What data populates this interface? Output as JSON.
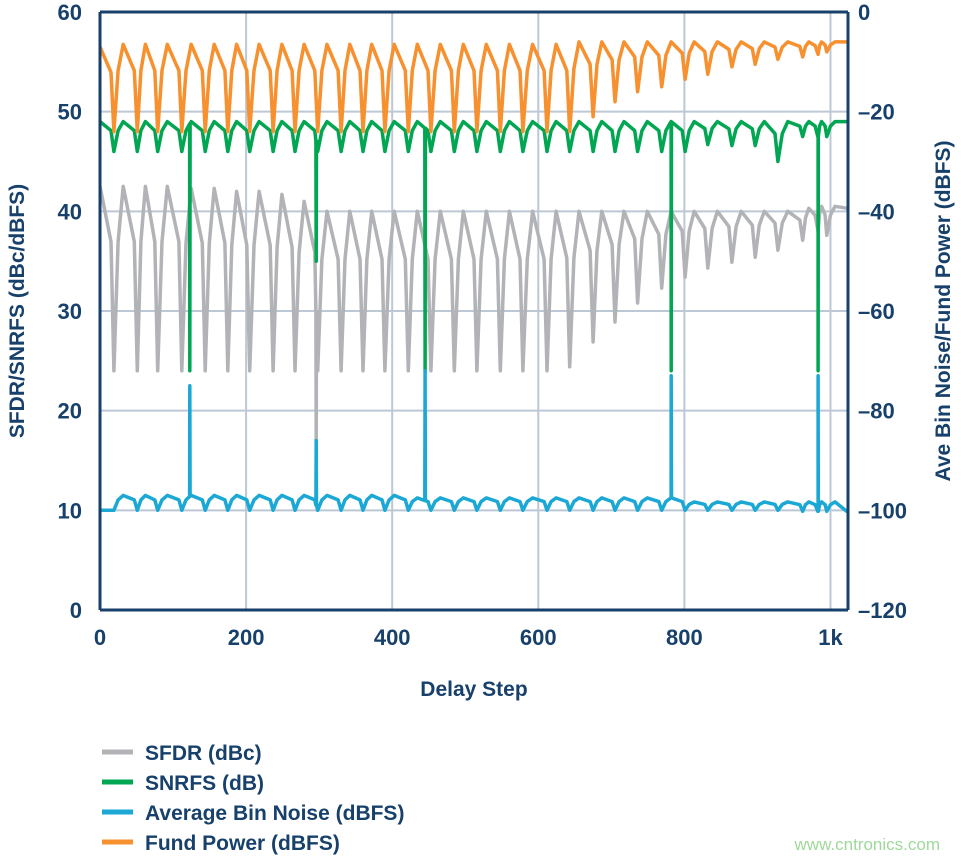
{
  "chart_data": {
    "type": "line",
    "xlabel": "Delay Step",
    "ylabel_left": "SFDR/SNRFS (dBc/dBFS)",
    "ylabel_right": "Ave Bin Noise/Fund Power (dBFS)",
    "xlim": [
      0,
      1024
    ],
    "ylim_left": [
      0,
      60
    ],
    "ylim_right": [
      -120,
      0
    ],
    "x_ticks": [
      0,
      200,
      400,
      600,
      800,
      1000
    ],
    "x_tick_labels": [
      "0",
      "200",
      "400",
      "600",
      "800",
      "1k"
    ],
    "y_left_ticks": [
      0,
      10,
      20,
      30,
      40,
      50,
      60
    ],
    "y_left_tick_labels": [
      "0",
      "10",
      "20",
      "30",
      "40",
      "50",
      "60"
    ],
    "y_right_ticks": [
      -120,
      -100,
      -80,
      -60,
      -40,
      -20,
      0
    ],
    "y_right_tick_labels": [
      "–120",
      "–100",
      "–80",
      "–60",
      "–40",
      "–20",
      "0"
    ],
    "grid": true,
    "legend_placement": "bottom-left",
    "cycle_dips_x": [
      19,
      51,
      79,
      112,
      144,
      175,
      205,
      237,
      267,
      298,
      330,
      360,
      390,
      422,
      453,
      485,
      516,
      548,
      579,
      612,
      643,
      675,
      705,
      736,
      769,
      801,
      832,
      865,
      897,
      928,
      962,
      983,
      995
    ],
    "series": [
      {
        "name": "SFDR (dBc)",
        "axis": "left",
        "color": "#b1b3b6",
        "start": 42.5,
        "end": 40.3,
        "dips": [
          24,
          24,
          24,
          24,
          24,
          24,
          24,
          24,
          24,
          24,
          24,
          24,
          24,
          24,
          24,
          24,
          24,
          24,
          24,
          24,
          24.4,
          26.9,
          28.9,
          30.8,
          32.3,
          33.4,
          34.3,
          34.9,
          35.4,
          36.1,
          37.1,
          38,
          37.6
        ],
        "peaks": [
          42.5,
          42.5,
          42.5,
          42.3,
          42.3,
          42,
          42,
          41.7,
          41,
          40,
          40,
          40,
          40,
          40,
          40,
          40,
          40,
          40,
          40,
          40,
          40,
          40,
          40,
          40,
          40,
          40,
          40,
          40,
          40,
          40,
          40.3,
          40.5,
          40.5
        ],
        "spikes": [
          [
            296,
            17
          ]
        ]
      },
      {
        "name": "SNRFS (dB)",
        "axis": "left",
        "color": "#00a651",
        "start": 49,
        "end": 49,
        "dips": [
          46,
          46,
          46,
          46,
          46,
          46,
          46,
          46,
          46,
          46,
          46,
          46,
          46,
          46,
          46,
          46,
          46,
          46,
          46,
          46,
          46,
          46,
          46,
          46,
          46,
          46,
          46.7,
          46.6,
          46.6,
          45,
          47.5,
          47.5,
          47.5
        ],
        "peaks": [
          49,
          49,
          49,
          49,
          49,
          49,
          49,
          49,
          49,
          49,
          49,
          49,
          49,
          49,
          49,
          49,
          49,
          49,
          49,
          49,
          49,
          49,
          49,
          49,
          49,
          49,
          49,
          49,
          49,
          49,
          49,
          49,
          49
        ],
        "spikes": [
          [
            123,
            24
          ],
          [
            296,
            35
          ],
          [
            445,
            24
          ],
          [
            782,
            24
          ],
          [
            983,
            24
          ]
        ]
      },
      {
        "name": "Average Bin Noise (dBFS)",
        "axis": "right",
        "color": "#1ba8d5",
        "start": -100,
        "end": -100.3,
        "dips": [
          -100,
          -100,
          -100,
          -100,
          -100,
          -100,
          -100,
          -100,
          -100,
          -100,
          -100,
          -100,
          -100,
          -100,
          -100,
          -100,
          -100,
          -100,
          -100,
          -100,
          -100,
          -100,
          -100,
          -100,
          -100,
          -100,
          -100,
          -100,
          -100,
          -100,
          -100.2,
          -100.2,
          -100.2
        ],
        "peaks": [
          -97,
          -97,
          -97,
          -97,
          -97,
          -97,
          -97,
          -97,
          -97,
          -97,
          -97,
          -97,
          -97,
          -97.5,
          -97.5,
          -97.5,
          -97.5,
          -97.5,
          -97.5,
          -97.5,
          -97.5,
          -97.5,
          -97.5,
          -97.5,
          -97.5,
          -98.3,
          -98.3,
          -98.3,
          -98.3,
          -98.3,
          -98.3,
          -98.3,
          -98.3
        ],
        "spikes": [
          [
            123,
            -75
          ],
          [
            296,
            -86
          ],
          [
            445,
            -72
          ],
          [
            782,
            -73
          ],
          [
            983,
            -73
          ]
        ]
      },
      {
        "name": "Fund Power (dBFS)",
        "axis": "right",
        "color": "#f7902e",
        "start": -7,
        "end": -6,
        "dips": [
          -24,
          -24,
          -24,
          -24,
          -24,
          -24,
          -24,
          -24,
          -24,
          -24,
          -24,
          -24,
          -24,
          -24,
          -24,
          -24,
          -24,
          -24,
          -24,
          -24,
          -24,
          -21,
          -18,
          -16,
          -15,
          -13.5,
          -12.5,
          -11,
          -10.5,
          -9.5,
          -9,
          -8.5,
          -8
        ],
        "peaks": [
          -6.5,
          -6.5,
          -6.5,
          -6.5,
          -6.5,
          -6.5,
          -6.5,
          -6.5,
          -6.5,
          -6.5,
          -6.5,
          -6.5,
          -6.5,
          -6.5,
          -6.5,
          -6.5,
          -6.5,
          -6.5,
          -6.5,
          -6.5,
          -6,
          -6,
          -6,
          -6,
          -6,
          -6,
          -6,
          -6,
          -6,
          -6,
          -6,
          -6,
          -6
        ],
        "spikes": []
      }
    ],
    "legend": [
      "SFDR (dBc)",
      "SNRFS (dB)",
      "Average Bin Noise (dBFS)",
      "Fund Power (dBFS)"
    ]
  },
  "watermark": "www.cntronics.com",
  "colors": {
    "text": "#17406b",
    "grid": "#bcc8d5",
    "frame": "#17406b"
  }
}
